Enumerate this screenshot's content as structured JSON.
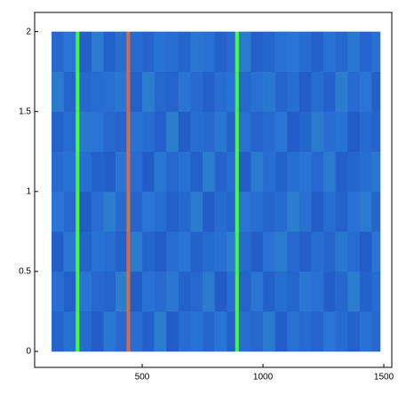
{
  "chart_data": {
    "type": "heatmap",
    "x_edges": [
      125,
      175,
      225,
      240,
      290,
      340,
      390,
      435,
      450,
      500,
      550,
      600,
      650,
      700,
      750,
      800,
      850,
      885,
      900,
      950,
      1000,
      1050,
      1100,
      1150,
      1200,
      1250,
      1300,
      1350,
      1400,
      1450,
      1485
    ],
    "y_edges": [
      0,
      0.25,
      0.5,
      0.75,
      1,
      1.25,
      1.5,
      1.75,
      2
    ],
    "values": [
      [
        0.22,
        0.28,
        0.72,
        0.25,
        0.19,
        0.31,
        0.24,
        0.98,
        0.27,
        0.21,
        0.33,
        0.18,
        0.26,
        0.29,
        0.23,
        0.3,
        0.2,
        0.71,
        0.27,
        0.24,
        0.32,
        0.19,
        0.28,
        0.25,
        0.22,
        0.3,
        0.26,
        0.21,
        0.29,
        0.24
      ],
      [
        0.27,
        0.2,
        0.7,
        0.3,
        0.24,
        0.22,
        0.33,
        0.97,
        0.19,
        0.28,
        0.25,
        0.31,
        0.21,
        0.24,
        0.32,
        0.18,
        0.27,
        0.73,
        0.22,
        0.3,
        0.2,
        0.26,
        0.23,
        0.31,
        0.28,
        0.19,
        0.24,
        0.33,
        0.21,
        0.27
      ],
      [
        0.19,
        0.31,
        0.71,
        0.22,
        0.29,
        0.26,
        0.2,
        0.99,
        0.32,
        0.23,
        0.18,
        0.27,
        0.3,
        0.21,
        0.25,
        0.28,
        0.33,
        0.7,
        0.25,
        0.19,
        0.29,
        0.32,
        0.24,
        0.2,
        0.27,
        0.23,
        0.31,
        0.26,
        0.18,
        0.3
      ],
      [
        0.3,
        0.24,
        0.73,
        0.18,
        0.27,
        0.33,
        0.25,
        0.96,
        0.22,
        0.3,
        0.27,
        0.2,
        0.24,
        0.32,
        0.19,
        0.26,
        0.23,
        0.72,
        0.3,
        0.27,
        0.22,
        0.25,
        0.33,
        0.28,
        0.19,
        0.26,
        0.21,
        0.29,
        0.32,
        0.23
      ],
      [
        0.25,
        0.29,
        0.7,
        0.27,
        0.21,
        0.19,
        0.3,
        0.98,
        0.26,
        0.18,
        0.31,
        0.24,
        0.28,
        0.2,
        0.33,
        0.22,
        0.26,
        0.71,
        0.19,
        0.32,
        0.27,
        0.21,
        0.26,
        0.3,
        0.24,
        0.32,
        0.2,
        0.23,
        0.27,
        0.31
      ],
      [
        0.21,
        0.26,
        0.72,
        0.31,
        0.3,
        0.24,
        0.22,
        0.97,
        0.29,
        0.26,
        0.2,
        0.33,
        0.19,
        0.27,
        0.24,
        0.31,
        0.21,
        0.73,
        0.28,
        0.22,
        0.25,
        0.3,
        0.19,
        0.23,
        0.32,
        0.27,
        0.29,
        0.18,
        0.25,
        0.22
      ],
      [
        0.32,
        0.22,
        0.71,
        0.24,
        0.26,
        0.28,
        0.31,
        0.99,
        0.21,
        0.33,
        0.24,
        0.22,
        0.3,
        0.25,
        0.2,
        0.27,
        0.29,
        0.7,
        0.24,
        0.28,
        0.31,
        0.23,
        0.27,
        0.19,
        0.26,
        0.21,
        0.33,
        0.25,
        0.3,
        0.2
      ],
      [
        0.24,
        0.3,
        0.7,
        0.2,
        0.32,
        0.21,
        0.27,
        0.98,
        0.25,
        0.22,
        0.29,
        0.26,
        0.23,
        0.31,
        0.28,
        0.21,
        0.25,
        0.72,
        0.32,
        0.2,
        0.23,
        0.28,
        0.3,
        0.26,
        0.21,
        0.29,
        0.24,
        0.31,
        0.22,
        0.28
      ]
    ],
    "colorscale": [
      [
        0,
        "#1638b0"
      ],
      [
        0.3,
        "#2a74d6"
      ],
      [
        0.6,
        "#2fd080"
      ],
      [
        0.72,
        "#44ff33"
      ],
      [
        1,
        "#e0604a"
      ]
    ],
    "xlim": [
      55,
      1533
    ],
    "ylim": [
      -0.1,
      2.12
    ],
    "xticks": [
      500,
      1000,
      1500
    ],
    "yticks": [
      0,
      0.5,
      1,
      1.5,
      2
    ]
  }
}
